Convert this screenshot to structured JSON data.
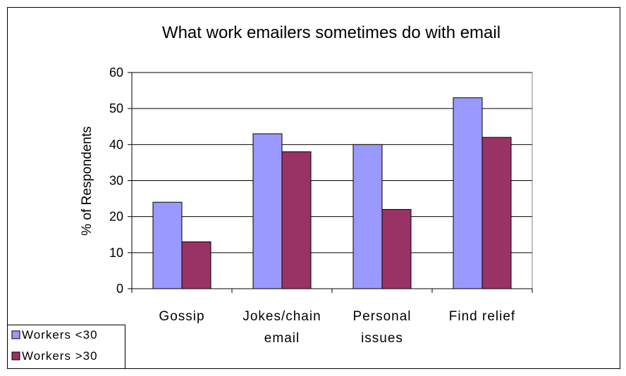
{
  "chart_data": {
    "type": "bar",
    "title": "What work emailers sometimes do with email",
    "xlabel": "",
    "ylabel": "% of Respondents",
    "categories": [
      [
        "Gossip"
      ],
      [
        "Jokes/chain",
        "email"
      ],
      [
        "Personal",
        "issues"
      ],
      [
        "Find relief"
      ]
    ],
    "series": [
      {
        "name": "Workers <30",
        "color": "#9999ff",
        "values": [
          24,
          43,
          40,
          53
        ]
      },
      {
        "name": "Workers >30",
        "color": "#993366",
        "values": [
          13,
          38,
          22,
          42
        ]
      }
    ],
    "ylim": [
      0,
      60
    ],
    "yticks": [
      0,
      10,
      20,
      30,
      40,
      50,
      60
    ],
    "grid": true,
    "legend": "bottom-left"
  }
}
